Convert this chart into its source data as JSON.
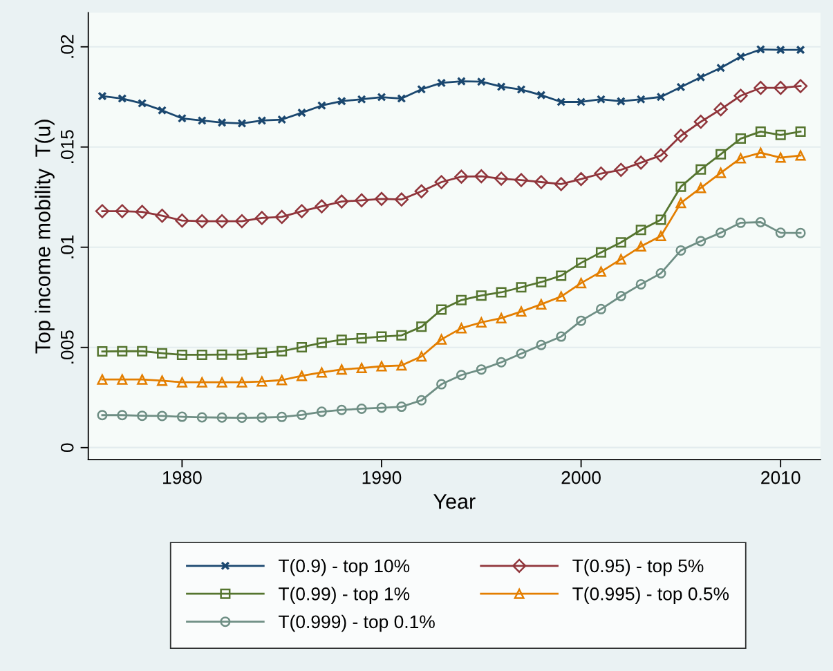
{
  "chart_data": {
    "type": "line",
    "xlabel": "Year",
    "ylabel": "Top income mobility  T(u)",
    "x": [
      1976,
      1977,
      1978,
      1979,
      1980,
      1981,
      1982,
      1983,
      1984,
      1985,
      1986,
      1987,
      1988,
      1989,
      1990,
      1991,
      1992,
      1993,
      1994,
      1995,
      1996,
      1997,
      1998,
      1999,
      2000,
      2001,
      2002,
      2003,
      2004,
      2005,
      2006,
      2007,
      2008,
      2009,
      2010,
      2011
    ],
    "series": [
      {
        "name": "T(0.9) - top 10%",
        "color": "#1a476f",
        "marker": "cross",
        "values": [
          0.01754,
          0.01742,
          0.01718,
          0.01683,
          0.01643,
          0.01632,
          0.01622,
          0.01618,
          0.01632,
          0.01637,
          0.01671,
          0.01707,
          0.01729,
          0.01738,
          0.01749,
          0.01742,
          0.01788,
          0.0182,
          0.01828,
          0.01826,
          0.01801,
          0.01787,
          0.01759,
          0.01725,
          0.01725,
          0.01738,
          0.01728,
          0.01738,
          0.0175,
          0.01799,
          0.01848,
          0.01895,
          0.01951,
          0.01987,
          0.01985,
          0.01985
        ]
      },
      {
        "name": "T(0.95) - top 5%",
        "color": "#90353b",
        "marker": "diamond",
        "values": [
          0.0118,
          0.0118,
          0.01176,
          0.01157,
          0.01133,
          0.0113,
          0.0113,
          0.0113,
          0.01146,
          0.01151,
          0.0118,
          0.01204,
          0.01228,
          0.01234,
          0.01241,
          0.01238,
          0.01279,
          0.01325,
          0.01352,
          0.01354,
          0.01342,
          0.01335,
          0.01325,
          0.01315,
          0.0134,
          0.01368,
          0.01386,
          0.01422,
          0.01458,
          0.01556,
          0.01626,
          0.01688,
          0.01756,
          0.01795,
          0.01795,
          0.01804
        ]
      },
      {
        "name": "T(0.99) - top 1%",
        "color": "#55752f",
        "marker": "square",
        "values": [
          0.0048,
          0.00481,
          0.00481,
          0.00471,
          0.00463,
          0.00463,
          0.00464,
          0.00464,
          0.00473,
          0.00481,
          0.00501,
          0.00523,
          0.00538,
          0.00546,
          0.00554,
          0.0056,
          0.00603,
          0.00689,
          0.00736,
          0.00759,
          0.00775,
          0.008,
          0.00826,
          0.00858,
          0.00922,
          0.00974,
          0.01024,
          0.01086,
          0.01137,
          0.01302,
          0.01388,
          0.01464,
          0.01542,
          0.01577,
          0.0156,
          0.01577
        ]
      },
      {
        "name": "T(0.995) - top 0.5%",
        "color": "#e37e00",
        "marker": "triangle",
        "values": [
          0.0034,
          0.0034,
          0.0034,
          0.00334,
          0.00326,
          0.00326,
          0.00326,
          0.00326,
          0.0033,
          0.00337,
          0.00358,
          0.00375,
          0.0039,
          0.00397,
          0.00406,
          0.0041,
          0.00455,
          0.0054,
          0.00596,
          0.00625,
          0.00646,
          0.00679,
          0.00715,
          0.00754,
          0.00821,
          0.00878,
          0.0094,
          0.01004,
          0.01056,
          0.01221,
          0.01296,
          0.01371,
          0.01444,
          0.01471,
          0.01447,
          0.01458
        ]
      },
      {
        "name": "T(0.999) - top 0.1%",
        "color": "#6e8e84",
        "marker": "circle",
        "values": [
          0.00162,
          0.00162,
          0.00159,
          0.00158,
          0.00154,
          0.00151,
          0.0015,
          0.00149,
          0.0015,
          0.00153,
          0.00163,
          0.00179,
          0.00188,
          0.00194,
          0.00199,
          0.00204,
          0.00236,
          0.00316,
          0.00362,
          0.0039,
          0.00426,
          0.00469,
          0.00512,
          0.00554,
          0.00633,
          0.00691,
          0.00756,
          0.00815,
          0.0087,
          0.00984,
          0.0103,
          0.01072,
          0.01122,
          0.01125,
          0.01072,
          0.01071
        ]
      }
    ],
    "xlim": [
      1975.3,
      2012.0
    ],
    "xticks": [
      1980,
      1990,
      2000,
      2010
    ],
    "ylim": [
      -0.0006,
      0.0217
    ],
    "yticks": [
      0,
      {
        "value": 0.005,
        "label": ".005"
      },
      {
        "value": 0.01,
        "label": ".01"
      },
      {
        "value": 0.015,
        "label": ".015"
      },
      {
        "value": 0.02,
        "label": ".02"
      }
    ],
    "grid": "y",
    "legend": "bottom",
    "line_style": "solid"
  }
}
